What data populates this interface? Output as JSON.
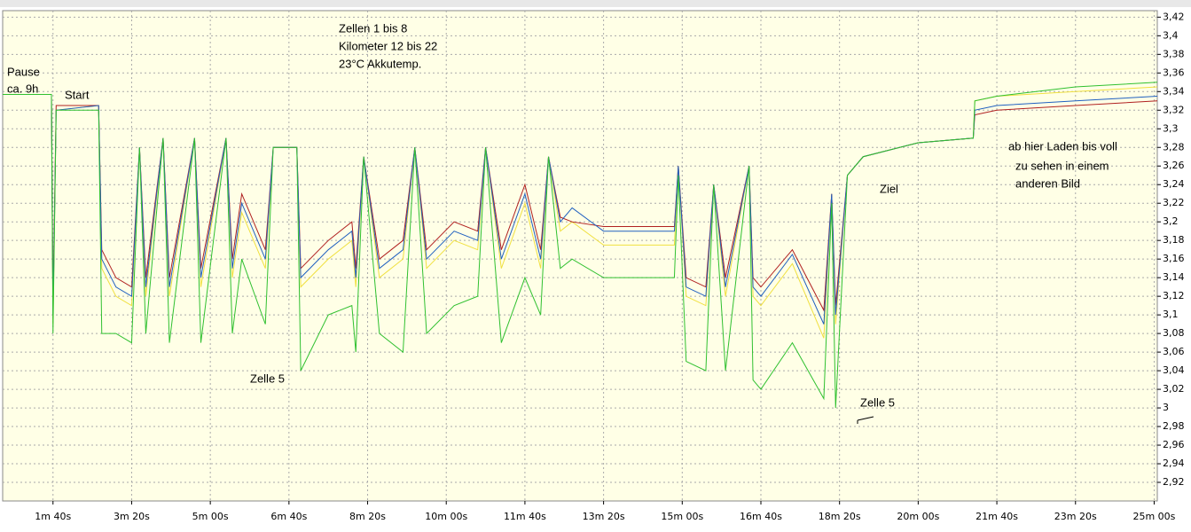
{
  "chart_data": {
    "type": "line",
    "annotations": [
      "Zellen  1 bis 8",
      "Kilometer 12 bis 22",
      "23°C Akkutemp.",
      "Pause",
      "ca. 9h",
      "Start",
      "Zelle 5",
      "Zelle 5",
      "Ziel",
      "ab hier Laden bis voll",
      "zu sehen in einem",
      "anderen Bild"
    ],
    "x": [
      36,
      98,
      100,
      104,
      158,
      162,
      180,
      200,
      210,
      218,
      240,
      248,
      280,
      288,
      320,
      328,
      340,
      370,
      380,
      410,
      415,
      450,
      480,
      485,
      495,
      515,
      545,
      560,
      575,
      610,
      640,
      650,
      670,
      700,
      720,
      730,
      745,
      760,
      800,
      890,
      895,
      905,
      930,
      940,
      955,
      985,
      990,
      1000,
      1040,
      1080,
      1090,
      1095,
      1110,
      1130,
      1200,
      1270,
      1272,
      1300,
      1400,
      1504
    ],
    "series": [
      {
        "color": "#f0e040",
        "values": [
          3.337,
          3.337,
          3.09,
          3.32,
          3.325,
          3.15,
          3.12,
          3.11,
          3.28,
          3.12,
          3.29,
          3.12,
          3.29,
          3.13,
          3.29,
          3.14,
          3.21,
          3.15,
          3.28,
          3.28,
          3.13,
          3.16,
          3.18,
          3.13,
          3.27,
          3.14,
          3.16,
          3.28,
          3.15,
          3.18,
          3.17,
          3.28,
          3.15,
          3.22,
          3.15,
          3.27,
          3.19,
          3.2,
          3.175,
          3.175,
          3.26,
          3.12,
          3.11,
          3.24,
          3.12,
          3.26,
          3.12,
          3.11,
          3.155,
          3.075,
          3.23,
          3.09,
          3.25,
          3.27,
          3.285,
          3.29,
          3.33,
          3.335,
          3.34,
          3.345
        ]
      },
      {
        "color": "#b02020",
        "values": [
          3.337,
          3.337,
          3.11,
          3.325,
          3.325,
          3.17,
          3.14,
          3.13,
          3.28,
          3.14,
          3.29,
          3.14,
          3.29,
          3.15,
          3.29,
          3.16,
          3.23,
          3.17,
          3.28,
          3.28,
          3.15,
          3.18,
          3.2,
          3.15,
          3.27,
          3.16,
          3.18,
          3.28,
          3.17,
          3.2,
          3.19,
          3.28,
          3.17,
          3.24,
          3.17,
          3.27,
          3.205,
          3.2,
          3.195,
          3.195,
          3.26,
          3.14,
          3.13,
          3.24,
          3.14,
          3.26,
          3.14,
          3.13,
          3.17,
          3.105,
          3.23,
          3.11,
          3.25,
          3.27,
          3.285,
          3.29,
          3.315,
          3.32,
          3.325,
          3.33
        ]
      },
      {
        "color": "#2060c0",
        "values": [
          3.337,
          3.337,
          3.1,
          3.32,
          3.325,
          3.16,
          3.13,
          3.12,
          3.28,
          3.13,
          3.29,
          3.13,
          3.29,
          3.14,
          3.29,
          3.15,
          3.22,
          3.16,
          3.28,
          3.28,
          3.14,
          3.17,
          3.19,
          3.14,
          3.27,
          3.15,
          3.17,
          3.28,
          3.16,
          3.19,
          3.18,
          3.28,
          3.16,
          3.23,
          3.16,
          3.27,
          3.2,
          3.215,
          3.19,
          3.19,
          3.26,
          3.13,
          3.12,
          3.24,
          3.13,
          3.26,
          3.13,
          3.12,
          3.165,
          3.09,
          3.23,
          3.1,
          3.25,
          3.27,
          3.285,
          3.29,
          3.32,
          3.325,
          3.33,
          3.335
        ]
      },
      {
        "color": "#30c030",
        "values": [
          3.337,
          3.337,
          3.08,
          3.32,
          3.32,
          3.08,
          3.08,
          3.07,
          3.28,
          3.08,
          3.29,
          3.07,
          3.29,
          3.07,
          3.29,
          3.08,
          3.16,
          3.09,
          3.28,
          3.28,
          3.04,
          3.1,
          3.11,
          3.06,
          3.27,
          3.08,
          3.06,
          3.28,
          3.08,
          3.11,
          3.12,
          3.28,
          3.07,
          3.14,
          3.1,
          3.27,
          3.15,
          3.16,
          3.14,
          3.14,
          3.25,
          3.05,
          3.04,
          3.24,
          3.04,
          3.26,
          3.03,
          3.02,
          3.07,
          3.01,
          3.22,
          3.0,
          3.25,
          3.27,
          3.285,
          3.29,
          3.33,
          3.335,
          3.345,
          3.35
        ]
      }
    ],
    "xlim": [
      36,
      1504
    ],
    "xticks": [
      {
        "value": 100,
        "label": "1m 40s"
      },
      {
        "value": 200,
        "label": "3m 20s"
      },
      {
        "value": 300,
        "label": "5m 00s"
      },
      {
        "value": 400,
        "label": "6m 40s"
      },
      {
        "value": 500,
        "label": "8m 20s"
      },
      {
        "value": 600,
        "label": "10m 00s"
      },
      {
        "value": 700,
        "label": "11m 40s"
      },
      {
        "value": 800,
        "label": "13m 20s"
      },
      {
        "value": 900,
        "label": "15m 00s"
      },
      {
        "value": 1000,
        "label": "16m 40s"
      },
      {
        "value": 1100,
        "label": "18m 20s"
      },
      {
        "value": 1200,
        "label": "20m 00s"
      },
      {
        "value": 1300,
        "label": "21m 40s"
      },
      {
        "value": 1400,
        "label": "23m 20s"
      },
      {
        "value": 1500,
        "label": "25m 00s"
      }
    ],
    "ylim": [
      2.9,
      3.427
    ],
    "yticks": [
      {
        "value": 2.92,
        "label": "2,92"
      },
      {
        "value": 2.94,
        "label": "2,94"
      },
      {
        "value": 2.96,
        "label": "2,96"
      },
      {
        "value": 2.98,
        "label": "2,98"
      },
      3,
      {
        "value": 3.02,
        "label": "3,02"
      },
      {
        "value": 3.04,
        "label": "3,04"
      },
      {
        "value": 3.06,
        "label": "3,06"
      },
      {
        "value": 3.08,
        "label": "3,08"
      },
      {
        "value": 3.1,
        "label": "3,1"
      },
      {
        "value": 3.12,
        "label": "3,12"
      },
      {
        "value": 3.14,
        "label": "3,14"
      },
      {
        "value": 3.16,
        "label": "3,16"
      },
      {
        "value": 3.18,
        "label": "3,18"
      },
      {
        "value": 3.2,
        "label": "3,2"
      },
      {
        "value": 3.22,
        "label": "3,22"
      },
      {
        "value": 3.24,
        "label": "3,24"
      },
      {
        "value": 3.26,
        "label": "3,26"
      },
      {
        "value": 3.28,
        "label": "3,28"
      },
      {
        "value": 3.3,
        "label": "3,3"
      },
      {
        "value": 3.32,
        "label": "3,32"
      },
      {
        "value": 3.34,
        "label": "3,34"
      },
      {
        "value": 3.36,
        "label": "3,36"
      },
      {
        "value": 3.38,
        "label": "3,38"
      },
      {
        "value": 3.4,
        "label": "3,4"
      },
      {
        "value": 3.42,
        "label": "3,42"
      }
    ],
    "grid": true
  }
}
